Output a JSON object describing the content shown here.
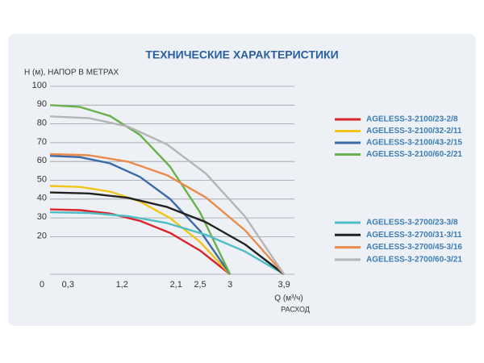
{
  "chart_data": {
    "type": "line",
    "title": "ТЕХНИЧЕСКИЕ ХАРАКТЕРИСТИКИ",
    "y_label": "H (м), НАПОР В МЕТРАХ",
    "x_label": "Q (м³/ч)",
    "x_sublabel": "РАСХОД",
    "xlim": [
      0,
      4.1
    ],
    "xticks": [
      0,
      {
        "value": 0.3,
        "label": "0,3"
      },
      {
        "value": 1.2,
        "label": "1,2"
      },
      {
        "value": 2.1,
        "label": "2,1"
      },
      {
        "value": 2.5,
        "label": "2,5"
      },
      3,
      {
        "value": 3.9,
        "label": "3,9"
      }
    ],
    "ylim": [
      0,
      100
    ],
    "yticks": [
      20,
      30,
      40,
      50,
      60,
      70,
      80,
      90,
      100
    ],
    "grid": true,
    "series": [
      {
        "name": "AGELESS-3-2100/23-2/8",
        "color": "#d8262d",
        "x": [
          0,
          0.5,
          1,
          1.5,
          2,
          2.5,
          3
        ],
        "values": [
          34.5,
          34.1,
          32.3,
          28.4,
          22.0,
          12.6,
          0
        ]
      },
      {
        "name": "AGELESS-3-2100/32-2/11",
        "color": "#f2c318",
        "x": [
          0,
          0.5,
          1,
          1.5,
          2,
          2.5,
          3
        ],
        "values": [
          47,
          46.5,
          44.0,
          38.7,
          29.9,
          17.2,
          0
        ]
      },
      {
        "name": "AGELESS-3-2100/43-2/15",
        "color": "#3c6aa9",
        "x": [
          0,
          0.5,
          1,
          1.5,
          2,
          2.5,
          3
        ],
        "values": [
          63,
          62.3,
          59.0,
          51.8,
          40.1,
          23.1,
          0
        ]
      },
      {
        "name": "AGELESS-3-2100/60-2/21",
        "color": "#6ab04c",
        "x": [
          0,
          0.5,
          1,
          1.5,
          2,
          2.5,
          3
        ],
        "values": [
          90,
          89.0,
          84.2,
          74.1,
          57.3,
          32.9,
          0
        ]
      },
      {
        "name": "AGELESS-3-2700/23-3/8",
        "color": "#4cbec4",
        "x": [
          0,
          0.65,
          1.3,
          1.95,
          2.6,
          3.25,
          3.9
        ],
        "values": [
          33,
          32.6,
          30.9,
          27.2,
          21.0,
          12.1,
          0
        ]
      },
      {
        "name": "AGELESS-3-2700/31-3/11",
        "color": "#222222",
        "x": [
          0,
          0.65,
          1.3,
          1.95,
          2.6,
          3.25,
          3.9
        ],
        "values": [
          43.5,
          43.0,
          40.7,
          35.8,
          27.7,
          15.9,
          0
        ]
      },
      {
        "name": "AGELESS-3-2700/45-3/16",
        "color": "#ec8a4a",
        "x": [
          0,
          0.65,
          1.3,
          1.95,
          2.6,
          3.25,
          3.9
        ],
        "values": [
          64,
          63.3,
          59.9,
          52.7,
          40.8,
          23.4,
          0
        ]
      },
      {
        "name": "AGELESS-3-2700/60-3/21",
        "color": "#b5b5b5",
        "x": [
          0,
          0.65,
          1.3,
          1.95,
          2.6,
          3.25,
          3.9
        ],
        "values": [
          84,
          83.1,
          78.6,
          69.1,
          53.5,
          30.7,
          0
        ]
      }
    ]
  }
}
